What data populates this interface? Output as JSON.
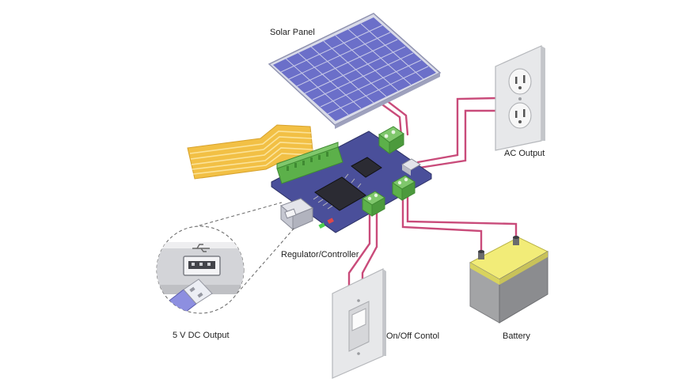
{
  "labels": {
    "solar_panel": "Solar Panel",
    "ac_output": "AC Output",
    "regulator": "Regulator/Controller",
    "usb_output": "5 V DC Output",
    "switch": "On/Off Contol",
    "battery": "Battery"
  },
  "colors": {
    "board": "#4a4f9a",
    "board_edge": "#343870",
    "terminal_green": "#5cb04a",
    "wire": "#c94b7a",
    "panel_cell": "#6b6fc9",
    "panel_frame": "#d9dbe8",
    "battery_top": "#f2ec78",
    "battery_body": "#a3a4a6",
    "ribbon": "#f2c045"
  }
}
